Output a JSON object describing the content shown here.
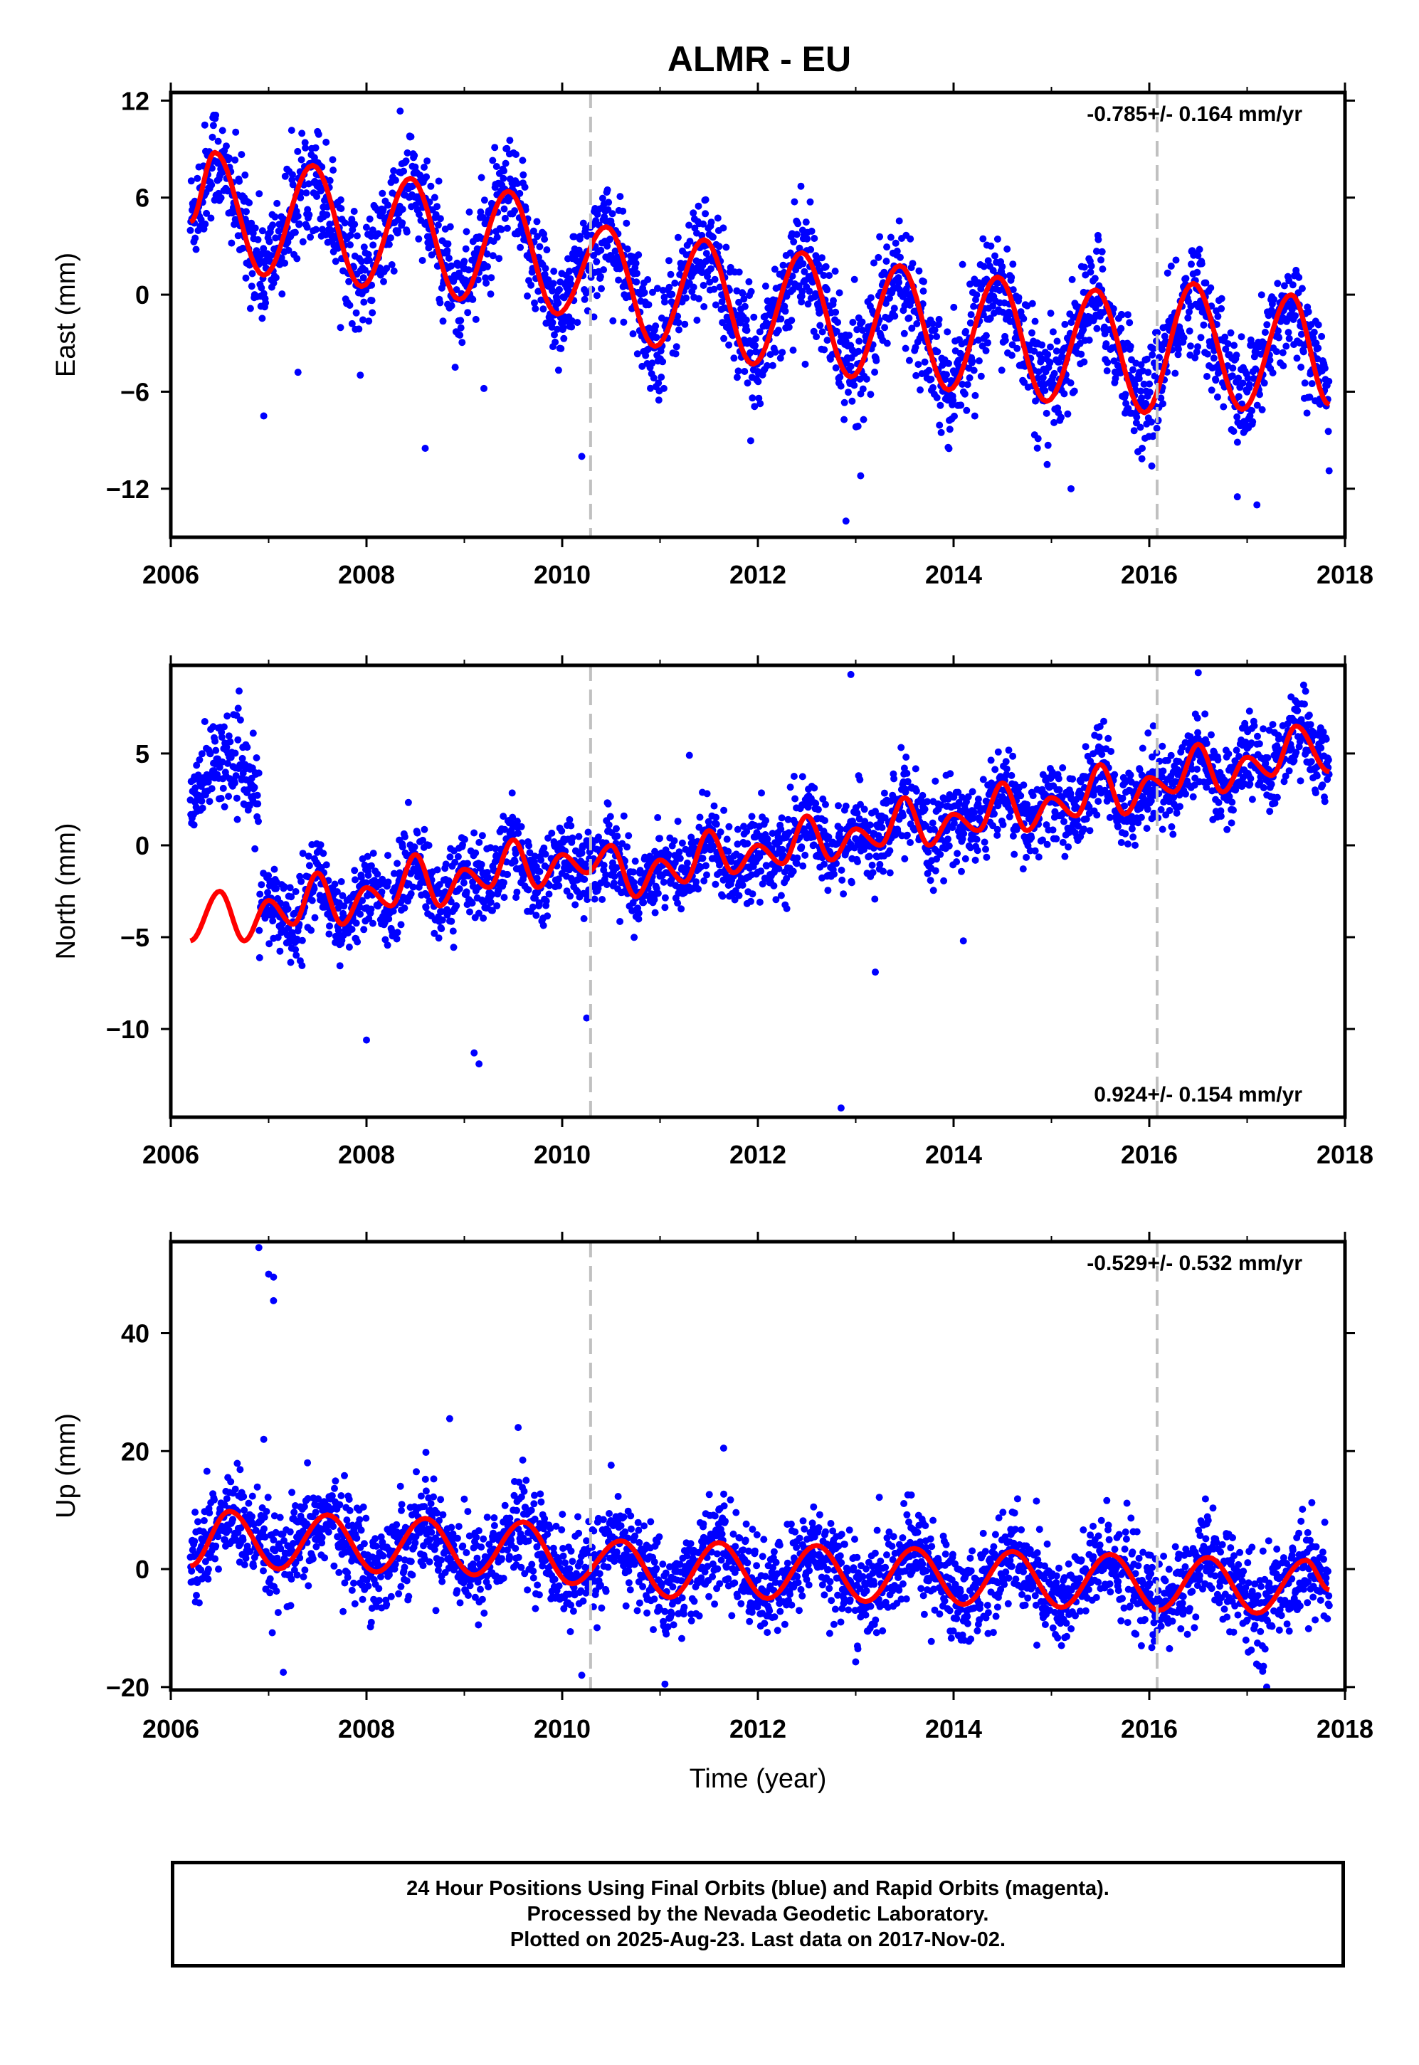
{
  "chart_data": [
    {
      "type": "scatter",
      "title": "ALMR - EU",
      "ylabel": "East (mm)",
      "xlabel": "",
      "xlim": [
        2006,
        2018
      ],
      "ylim": [
        -15,
        12.5
      ],
      "yticks": [
        12,
        6,
        0,
        -6,
        -12
      ],
      "xticks": [
        2006,
        2008,
        2010,
        2012,
        2014,
        2016,
        2018
      ],
      "rate_text": "-0.785+/- 0.164 mm/yr",
      "rate_position": "top-right",
      "equipment_change_lines": [
        2010.29,
        2016.08
      ],
      "data_start": 2006.2,
      "data_end": 2017.84,
      "series": [
        {
          "name": "daily positions",
          "color": "#0000ff",
          "marker": "dot",
          "seasonal_amplitude": 3.8,
          "trend_rate": -0.785,
          "noise_sd": 1.7,
          "x": [
            2006.45,
            2007.45,
            2008.45,
            2009.45,
            2010.45,
            2011.45,
            2012.45,
            2013.45,
            2014.45,
            2015.45,
            2016.45,
            2017.45
          ],
          "y": [
            8.5,
            9.0,
            8.0,
            7.0,
            4.5,
            3.5,
            2.5,
            1.5,
            1.0,
            0.5,
            0.5,
            -0.5
          ]
        },
        {
          "name": "model fit",
          "color": "#ff0000",
          "marker": "line",
          "x": [
            2006.2,
            2006.45,
            2006.95,
            2007.45,
            2007.95,
            2008.45,
            2008.95,
            2009.45,
            2009.95,
            2010.45,
            2010.95,
            2011.45,
            2011.95,
            2012.45,
            2012.95,
            2013.45,
            2013.95,
            2014.45,
            2014.95,
            2015.45,
            2015.95,
            2016.45,
            2016.95,
            2017.45,
            2017.84
          ],
          "y": [
            4.5,
            8.8,
            1.2,
            8.0,
            0.5,
            7.2,
            -0.3,
            6.4,
            -1.2,
            4.2,
            -3.2,
            3.4,
            -4.3,
            2.6,
            -5.1,
            1.8,
            -5.9,
            1.1,
            -6.6,
            0.3,
            -7.3,
            0.7,
            -7.1,
            0.0,
            -6.8
          ]
        }
      ],
      "outliers": [
        [
          2006.95,
          -7.5
        ],
        [
          2008.6,
          -9.5
        ],
        [
          2010.2,
          -10.0
        ],
        [
          2012.9,
          -14.0
        ],
        [
          2017.1,
          -13.0
        ],
        [
          2013.05,
          -11.2
        ],
        [
          2016.9,
          -12.5
        ],
        [
          2007.3,
          -4.8
        ],
        [
          2015.2,
          -12.0
        ],
        [
          2009.2,
          -5.8
        ]
      ]
    },
    {
      "type": "scatter",
      "title": "",
      "ylabel": "North (mm)",
      "xlabel": "",
      "xlim": [
        2006,
        2018
      ],
      "ylim": [
        -14.8,
        9.8
      ],
      "yticks": [
        5,
        0,
        -5,
        -10
      ],
      "xticks": [
        2006,
        2008,
        2010,
        2012,
        2014,
        2016,
        2018
      ],
      "rate_text": "0.924+/- 0.154 mm/yr",
      "rate_position": "bottom-right",
      "equipment_change_lines": [
        2010.29,
        2016.08
      ],
      "data_start": 2006.2,
      "data_end": 2017.84,
      "series": [
        {
          "name": "daily positions",
          "color": "#0000ff",
          "marker": "dot",
          "seasonal_amplitude": 1.4,
          "trend_rate": 0.924,
          "noise_sd": 1.1,
          "pre_offset_end": 2006.9,
          "pre_offset_level": 3.3,
          "x": [
            2006.5,
            2007.5,
            2008.5,
            2009.5,
            2010.5,
            2011.5,
            2012.5,
            2013.5,
            2014.5,
            2015.5,
            2016.5,
            2017.5
          ],
          "y": [
            3.5,
            -4.0,
            -3.5,
            -2.5,
            -1.5,
            -1.0,
            0.0,
            1.0,
            2.0,
            3.0,
            4.0,
            5.0
          ]
        },
        {
          "name": "model fit",
          "color": "#ff0000",
          "marker": "line",
          "x": [
            2006.2,
            2006.5,
            2006.75,
            2007.0,
            2007.25,
            2007.5,
            2007.75,
            2008.0,
            2008.25,
            2008.5,
            2008.75,
            2009.0,
            2009.25,
            2009.5,
            2009.75,
            2010.0,
            2010.25,
            2010.5,
            2010.75,
            2011.0,
            2011.25,
            2011.5,
            2011.75,
            2012.0,
            2012.25,
            2012.5,
            2012.75,
            2013.0,
            2013.25,
            2013.5,
            2013.75,
            2014.0,
            2014.25,
            2014.5,
            2014.75,
            2015.0,
            2015.25,
            2015.5,
            2015.75,
            2016.0,
            2016.25,
            2016.5,
            2016.75,
            2017.0,
            2017.25,
            2017.5,
            2017.84
          ],
          "y": [
            -5.2,
            -2.5,
            -5.2,
            -3.0,
            -4.3,
            -1.5,
            -4.3,
            -2.3,
            -3.3,
            -0.5,
            -3.3,
            -1.3,
            -2.3,
            0.3,
            -2.3,
            -0.5,
            -1.5,
            0.0,
            -2.8,
            -0.8,
            -2.0,
            0.8,
            -1.5,
            0.0,
            -1.0,
            1.6,
            -0.8,
            0.9,
            0.0,
            2.6,
            0.0,
            1.7,
            0.8,
            3.4,
            0.8,
            2.6,
            1.6,
            4.4,
            1.7,
            3.7,
            2.9,
            5.5,
            2.9,
            4.8,
            3.8,
            6.5,
            4.0
          ]
        }
      ],
      "outliers": [
        [
          2008.0,
          -10.6
        ],
        [
          2009.1,
          -11.3
        ],
        [
          2009.15,
          -11.9
        ],
        [
          2010.25,
          -9.4
        ],
        [
          2012.85,
          -14.3
        ],
        [
          2013.2,
          -6.9
        ],
        [
          2014.1,
          -5.2
        ],
        [
          2012.95,
          9.3
        ],
        [
          2016.5,
          9.4
        ],
        [
          2011.3,
          4.9
        ]
      ]
    },
    {
      "type": "scatter",
      "title": "",
      "ylabel": "Up (mm)",
      "xlabel": "Time (year)",
      "xlim": [
        2006,
        2018
      ],
      "ylim": [
        -20.5,
        55.5
      ],
      "yticks": [
        40,
        20,
        0,
        -20
      ],
      "xticks": [
        2006,
        2008,
        2010,
        2012,
        2014,
        2016,
        2018
      ],
      "rate_text": "-0.529+/- 0.532 mm/yr",
      "rate_position": "top-right",
      "equipment_change_lines": [
        2010.29,
        2016.08
      ],
      "data_start": 2006.2,
      "data_end": 2017.84,
      "series": [
        {
          "name": "daily positions",
          "color": "#0000ff",
          "marker": "dot",
          "seasonal_amplitude": 4.5,
          "trend_rate": -0.529,
          "noise_sd": 4.0,
          "x": [
            2006.6,
            2007.6,
            2008.6,
            2009.6,
            2010.6,
            2011.6,
            2012.6,
            2013.6,
            2014.6,
            2015.6,
            2016.6,
            2017.6
          ],
          "y": [
            9.0,
            9.0,
            8.5,
            7.5,
            4.0,
            4.0,
            3.5,
            3.0,
            2.5,
            2.0,
            1.5,
            1.0
          ]
        },
        {
          "name": "model fit",
          "color": "#ff0000",
          "marker": "line",
          "x": [
            2006.2,
            2006.6,
            2007.1,
            2007.6,
            2008.1,
            2008.6,
            2009.1,
            2009.6,
            2010.1,
            2010.6,
            2011.1,
            2011.6,
            2012.1,
            2012.6,
            2013.1,
            2013.6,
            2014.1,
            2014.6,
            2015.1,
            2015.6,
            2016.1,
            2016.6,
            2017.1,
            2017.6,
            2017.84
          ],
          "y": [
            0.5,
            9.8,
            0.0,
            9.2,
            -0.5,
            8.6,
            -1.0,
            8.0,
            -2.5,
            4.8,
            -4.8,
            4.5,
            -5.0,
            4.0,
            -5.5,
            3.5,
            -6.0,
            3.0,
            -6.5,
            2.5,
            -7.0,
            2.0,
            -7.5,
            1.5,
            -3.5
          ]
        }
      ],
      "outliers": [
        [
          2006.9,
          54.5
        ],
        [
          2007.0,
          50.0
        ],
        [
          2007.05,
          49.5
        ],
        [
          2007.05,
          45.5
        ],
        [
          2006.95,
          22.0
        ],
        [
          2008.85,
          25.5
        ],
        [
          2009.55,
          24.0
        ],
        [
          2011.65,
          20.5
        ],
        [
          2007.15,
          -17.5
        ],
        [
          2010.2,
          -18.0
        ],
        [
          2011.05,
          -19.5
        ],
        [
          2017.2,
          -20.0
        ]
      ]
    }
  ],
  "footer": {
    "line1": "24 Hour Positions Using Final Orbits (blue) and Rapid Orbits (magenta).",
    "line2": "Processed by the Nevada Geodetic Laboratory.",
    "line3": "Plotted on 2025-Aug-23. Last data on 2017-Nov-02."
  },
  "colors": {
    "points": "#0000ff",
    "fit": "#ff0000",
    "reference_lines": "#c0c0c0",
    "frame": "#000000"
  }
}
